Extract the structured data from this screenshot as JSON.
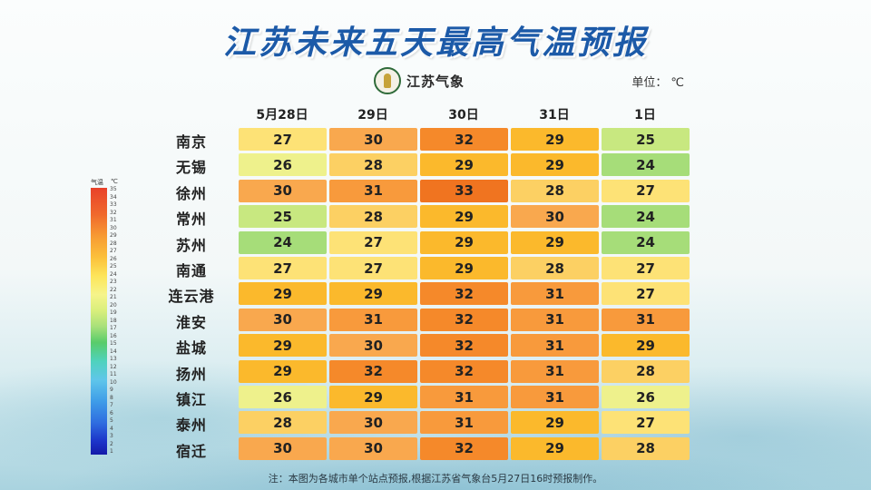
{
  "title": "江苏未来五天最高气温预报",
  "logo_text": "江苏气象",
  "unit_label": "单位：",
  "unit_value": "℃",
  "footnote": "注：本图为各城市单个站点预报,根据江苏省气象台5月27日16时预报制作。",
  "legend": {
    "title": "气温",
    "unit": "℃",
    "ticks": [
      35,
      34,
      33,
      32,
      31,
      30,
      29,
      28,
      27,
      26,
      25,
      24,
      23,
      22,
      21,
      20,
      19,
      18,
      17,
      16,
      15,
      14,
      13,
      12,
      11,
      10,
      9,
      8,
      7,
      6,
      5,
      4,
      3,
      2,
      1
    ]
  },
  "chart_data": {
    "type": "heatmap",
    "title": "江苏未来五天最高气温预报",
    "unit": "℃",
    "x_labels": [
      "5月28日",
      "29日",
      "30日",
      "31日",
      "1日"
    ],
    "y_labels": [
      "南京",
      "无锡",
      "徐州",
      "常州",
      "苏州",
      "南通",
      "连云港",
      "淮安",
      "盐城",
      "扬州",
      "镇江",
      "泰州",
      "宿迁"
    ],
    "values": [
      [
        27,
        30,
        32,
        29,
        25
      ],
      [
        26,
        28,
        29,
        29,
        24
      ],
      [
        30,
        31,
        33,
        28,
        27
      ],
      [
        25,
        28,
        29,
        30,
        24
      ],
      [
        24,
        27,
        29,
        29,
        24
      ],
      [
        27,
        27,
        29,
        28,
        27
      ],
      [
        29,
        29,
        32,
        31,
        27
      ],
      [
        30,
        31,
        32,
        31,
        31
      ],
      [
        29,
        30,
        32,
        31,
        29
      ],
      [
        29,
        32,
        32,
        31,
        28
      ],
      [
        26,
        29,
        31,
        31,
        26
      ],
      [
        28,
        30,
        31,
        29,
        27
      ],
      [
        30,
        30,
        32,
        29,
        28
      ]
    ],
    "colors": {
      "24": "#a6dd79",
      "25": "#c8e880",
      "26": "#eef18c",
      "27": "#fde276",
      "28": "#fcd063",
      "29": "#fbb92c",
      "30": "#f9a84e",
      "31": "#f89a3c",
      "32": "#f5892a",
      "33": "#f07420"
    }
  }
}
